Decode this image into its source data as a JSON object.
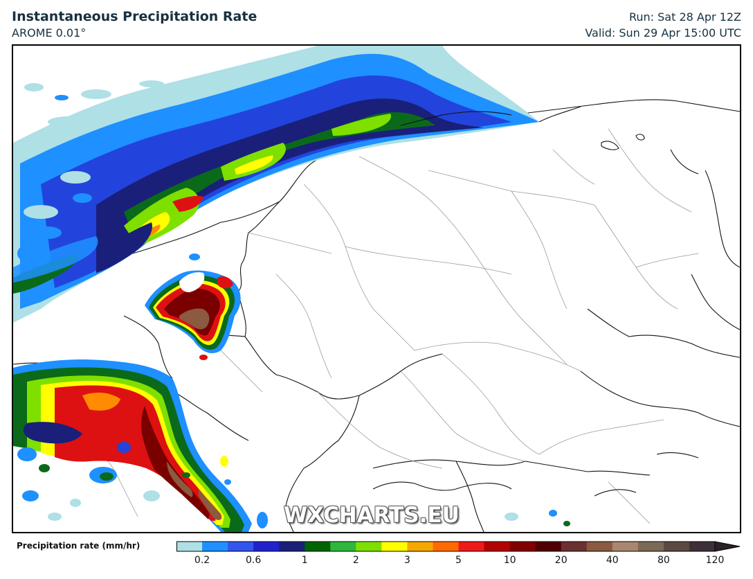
{
  "header": {
    "title": "Instantaneous Precipitation Rate",
    "model": "AROME 0.01°",
    "run": "Run: Sat 28 Apr 12Z",
    "valid": "Valid: Sun 29 Apr 15:00 UTC"
  },
  "watermark": "WXCHARTS.EU",
  "legend": {
    "label": "Precipitation rate (mm/hr)",
    "ticks": [
      "0.2",
      "0.6",
      "1",
      "2",
      "3",
      "5",
      "10",
      "20",
      "40",
      "80",
      "120"
    ],
    "colors": [
      "#aee0e6",
      "#1e90ff",
      "#3355ee",
      "#2222cc",
      "#1a1f7a",
      "#006400",
      "#2db83d",
      "#7fe000",
      "#ffff00",
      "#f5a800",
      "#ff6a00",
      "#ee1a1a",
      "#b30000",
      "#800000",
      "#500000",
      "#6b3030",
      "#8b5a40",
      "#a88670",
      "#7d6a56",
      "#5a4a40",
      "#3e3038"
    ]
  },
  "map": {
    "precip_colors": {
      "light": "#aee0e6",
      "blue": "#1e90ff",
      "mid_blue": "#2244dd",
      "dark_blue": "#1a1f7a",
      "green": "#0a6a1a",
      "lime": "#7fe000",
      "yellow": "#ffff00",
      "orange": "#ff8c00",
      "red": "#dd1111",
      "dark_red": "#7a0000",
      "brown": "#8b5a40"
    }
  }
}
